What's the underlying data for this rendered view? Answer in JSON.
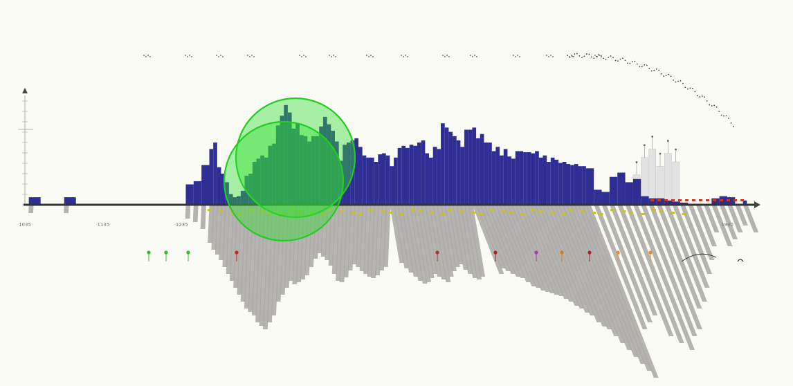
{
  "colors": {
    "background": "#fbfbf6",
    "bars": "#2e2e94",
    "shadow": "#a9a7a3",
    "highlight_circle": "#33dd33",
    "secondary_bars": "#e2e2e2",
    "markers_yellow": "#c8c03a",
    "markers_red": "#c0392b"
  },
  "chart_data": {
    "type": "bar",
    "title": "",
    "xlabel": "",
    "ylabel": "",
    "x_range": [
      1035,
      1960
    ],
    "x_tick_labels": [
      "1035",
      "1135",
      "1235",
      "1930"
    ],
    "y_range": [
      0,
      100
    ],
    "grid": false,
    "legend": "none",
    "series": [
      {
        "x": [
          1040,
          1055,
          1070,
          1085,
          1100,
          1115,
          1130,
          1145,
          1160,
          1175,
          1190,
          1205,
          1220,
          1240,
          1250,
          1260,
          1270,
          1275,
          1280,
          1285,
          1290,
          1295,
          1300,
          1305,
          1310,
          1315,
          1320,
          1325,
          1330,
          1335,
          1340,
          1345,
          1350,
          1355,
          1360,
          1365,
          1370,
          1375,
          1380,
          1385,
          1390,
          1395,
          1400,
          1405,
          1410,
          1415,
          1420,
          1425,
          1430,
          1435,
          1440,
          1445,
          1450,
          1455,
          1460,
          1465,
          1470,
          1475,
          1480,
          1485,
          1490,
          1495,
          1500,
          1505,
          1510,
          1515,
          1520,
          1525,
          1530,
          1535,
          1540,
          1545,
          1550,
          1555,
          1560,
          1565,
          1570,
          1575,
          1580,
          1585,
          1590,
          1595,
          1600,
          1605,
          1610,
          1615,
          1620,
          1625,
          1630,
          1635,
          1640,
          1645,
          1650,
          1655,
          1660,
          1665,
          1670,
          1675,
          1680,
          1685,
          1690,
          1695,
          1700,
          1705,
          1710,
          1715,
          1720,
          1725,
          1730,
          1735,
          1740,
          1745,
          1750,
          1760,
          1770,
          1780,
          1790,
          1800,
          1810,
          1820,
          1830,
          1840,
          1850,
          1860,
          1870,
          1880,
          1890,
          1900,
          1910,
          1920,
          1930,
          1940,
          1950
        ],
        "values": [
          7,
          0,
          0,
          7,
          0,
          0,
          0,
          0,
          0,
          0,
          0,
          0,
          0,
          19,
          22,
          37,
          52,
          58,
          35,
          29,
          21,
          10,
          7,
          8,
          13,
          27,
          29,
          40,
          43,
          46,
          44,
          55,
          57,
          74,
          83,
          93,
          86,
          71,
          76,
          65,
          64,
          59,
          64,
          64,
          73,
          82,
          75,
          69,
          59,
          41,
          56,
          58,
          60,
          62,
          54,
          46,
          44,
          44,
          40,
          47,
          48,
          46,
          36,
          44,
          53,
          55,
          53,
          56,
          55,
          58,
          60,
          48,
          44,
          54,
          52,
          76,
          72,
          68,
          64,
          60,
          54,
          70,
          70,
          72,
          62,
          66,
          58,
          58,
          50,
          54,
          46,
          52,
          45,
          43,
          50,
          50,
          49,
          49,
          48,
          50,
          44,
          46,
          40,
          44,
          42,
          39,
          40,
          38,
          37,
          38,
          36,
          36,
          34,
          14,
          12,
          26,
          30,
          21,
          24,
          8,
          6,
          6,
          4,
          3,
          2,
          0,
          0,
          0,
          6,
          8,
          7,
          0,
          4
        ]
      }
    ],
    "shadow_series": {
      "values": [
        12,
        0,
        0,
        12,
        0,
        0,
        0,
        0,
        0,
        0,
        0,
        0,
        0,
        20,
        25,
        35,
        55,
        65,
        72,
        80,
        90,
        100,
        110,
        120,
        130,
        140,
        150,
        155,
        160,
        170,
        175,
        180,
        170,
        160,
        140,
        130,
        120,
        110,
        115,
        112,
        108,
        102,
        90,
        78,
        70,
        75,
        80,
        88,
        100,
        110,
        112,
        105,
        95,
        86,
        90,
        96,
        100,
        104,
        106,
        102,
        95,
        90,
        84,
        92,
        98,
        104,
        110,
        114,
        112,
        106,
        100,
        104,
        108,
        112,
        104,
        96,
        90,
        86,
        94,
        100,
        106,
        108,
        104,
        100,
        92,
        96,
        100,
        104,
        106,
        112,
        118,
        120,
        124,
        126,
        128,
        130,
        132,
        136,
        140,
        146,
        150,
        156,
        160,
        170,
        176,
        180,
        190,
        200,
        210,
        220,
        230,
        240,
        250,
        180,
        170,
        160,
        190,
        200,
        210,
        190,
        180,
        150,
        140,
        120,
        100,
        80,
        60,
        40,
        60,
        50,
        40,
        30,
        40
      ]
    }
  }
}
